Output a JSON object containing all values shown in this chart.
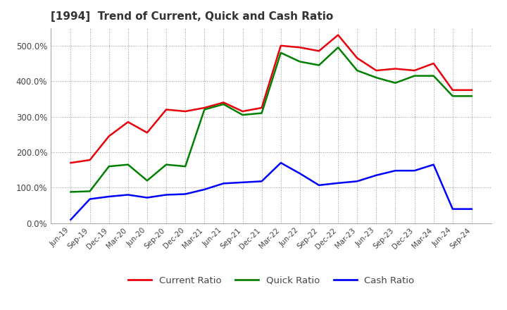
{
  "title": "[1994]  Trend of Current, Quick and Cash Ratio",
  "x_labels": [
    "Jun-19",
    "Sep-19",
    "Dec-19",
    "Mar-20",
    "Jun-20",
    "Sep-20",
    "Dec-20",
    "Mar-21",
    "Jun-21",
    "Sep-21",
    "Dec-21",
    "Mar-22",
    "Jun-22",
    "Sep-22",
    "Dec-22",
    "Mar-23",
    "Jun-23",
    "Sep-23",
    "Dec-23",
    "Mar-24",
    "Jun-24",
    "Sep-24"
  ],
  "current_ratio": [
    170,
    178,
    245,
    285,
    255,
    320,
    315,
    325,
    340,
    315,
    325,
    500,
    495,
    485,
    530,
    465,
    430,
    435,
    430,
    450,
    375,
    375
  ],
  "quick_ratio": [
    88,
    90,
    160,
    165,
    120,
    165,
    160,
    320,
    335,
    305,
    310,
    480,
    455,
    445,
    495,
    430,
    410,
    395,
    415,
    415,
    358,
    358
  ],
  "cash_ratio": [
    10,
    68,
    75,
    80,
    72,
    80,
    82,
    95,
    112,
    115,
    118,
    170,
    140,
    107,
    113,
    118,
    135,
    148,
    148,
    165,
    40,
    40
  ],
  "ylim": [
    0,
    550
  ],
  "yticks": [
    0,
    100,
    200,
    300,
    400,
    500
  ],
  "ytick_labels": [
    "0.0%",
    "100.0%",
    "200.0%",
    "300.0%",
    "400.0%",
    "500.0%"
  ],
  "colors": {
    "current": "#e8000d",
    "quick": "#008000",
    "cash": "#0000ff"
  },
  "title_color": "#333333",
  "background_color": "#ffffff",
  "plot_bg_color": "#ffffff",
  "grid_color": "#999999",
  "linewidth": 1.8,
  "legend_labels": [
    "Current Ratio",
    "Quick Ratio",
    "Cash Ratio"
  ],
  "legend_text_color": "#444444",
  "tick_color": "#444444",
  "spine_color": "#aaaaaa"
}
